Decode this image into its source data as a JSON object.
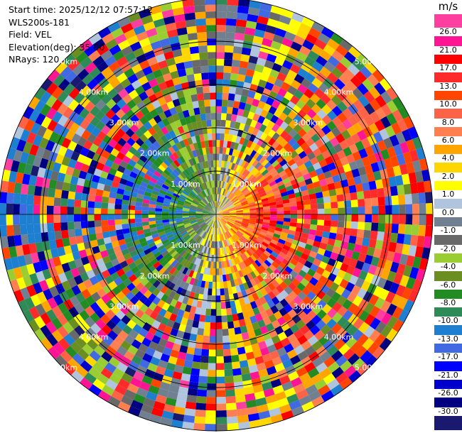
{
  "header": {
    "start_time": "Start time: 2025/12/12 07:57:12",
    "instrument": "WLS200s-181",
    "field": "Field: VEL",
    "elevation": "Elevation(deg): 35.00",
    "nrays": "NRays: 120"
  },
  "colorbar": {
    "unit": "m/s",
    "ticks": [
      "26.0",
      "21.0",
      "17.0",
      "13.0",
      "10.0",
      "8.0",
      "6.0",
      "4.0",
      "2.0",
      "1.0",
      "0.0",
      "-1.0",
      "-2.0",
      "-4.0",
      "-6.0",
      "-8.0",
      "-10.0",
      "-13.0",
      "-17.0",
      "-21.0",
      "-26.0",
      "-30.0"
    ],
    "colors": [
      "#ff3fa0",
      "#ff1493",
      "#ff0000",
      "#ff2a2a",
      "#ff4500",
      "#ff6347",
      "#ff7f50",
      "#ffa500",
      "#ffd700",
      "#ffff00",
      "#b0c4de",
      "#708090",
      "#696969",
      "#9acd32",
      "#6b8e23",
      "#228b22",
      "#2e8b57",
      "#1e7fd0",
      "#4169e1",
      "#0000ff",
      "#0000cd",
      "#000080",
      "#191970"
    ]
  },
  "chart_data": {
    "type": "heatmap",
    "projection": "polar PPI",
    "field": "VEL",
    "units": "m/s",
    "elevation_deg": 35.0,
    "nrays": 120,
    "range_rings_km": [
      1.0,
      2.0,
      3.0,
      4.0,
      5.0
    ],
    "range_ring_labels": [
      "1.00km",
      "2.00km",
      "3.00km",
      "4.00km",
      "5.00km"
    ],
    "value_range": [
      -30,
      26
    ],
    "pattern": {
      "inner_flow": "negative (blue/green) toward the west and south-west, positive (pink/red) toward the east and south-east",
      "outer_rings": "noisy high-variance returns across the full colour scale"
    }
  }
}
